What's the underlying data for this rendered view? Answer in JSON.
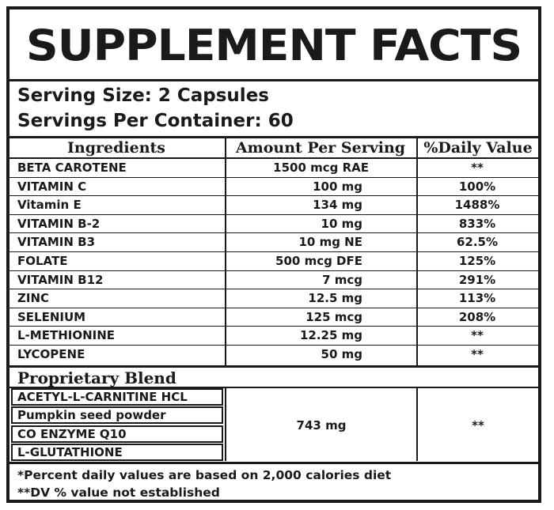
{
  "title": "SUPPLEMENT FACTS",
  "serving_size": "Serving Size: 2 Capsules",
  "servings_per_container": "Servings Per Container: 60",
  "columns": {
    "ingredients": "Ingredients",
    "amount": "Amount Per Serving",
    "daily_value": "%Daily Value"
  },
  "rows": [
    {
      "name": "BETA CAROTENE",
      "amount": "1500 mcg RAE",
      "dv": "**"
    },
    {
      "name": "VITAMIN C",
      "amount": "100 mg",
      "dv": "100%"
    },
    {
      "name": "Vitamin E",
      "amount": "134 mg",
      "dv": "1488%"
    },
    {
      "name": "VITAMIN B-2",
      "amount": "10 mg",
      "dv": "833%"
    },
    {
      "name": "VITAMIN B3",
      "amount": "10 mg NE",
      "dv": "62.5%"
    },
    {
      "name": "FOLATE",
      "amount": "500 mcg DFE",
      "dv": "125%"
    },
    {
      "name": "VITAMIN B12",
      "amount": "7 mcg",
      "dv": "291%"
    },
    {
      "name": "ZINC",
      "amount": "12.5 mg",
      "dv": "113%"
    },
    {
      "name": "SELENIUM",
      "amount": "125 mcg",
      "dv": "208%"
    },
    {
      "name": "L-METHIONINE",
      "amount": "12.25 mg",
      "dv": "**"
    },
    {
      "name": "LYCOPENE",
      "amount": "50 mg",
      "dv": "**"
    }
  ],
  "blend": {
    "title": "Proprietary Blend",
    "items": [
      "ACETYL-L-CARNITINE HCL",
      "Pumpkin seed powder",
      "CO ENZYME Q10",
      "L-GLUTATHIONE"
    ],
    "amount": "743 mg",
    "dv": "**"
  },
  "footnotes": [
    "*Percent daily values are based on 2,000 calories diet",
    "**DV % value not established"
  ]
}
